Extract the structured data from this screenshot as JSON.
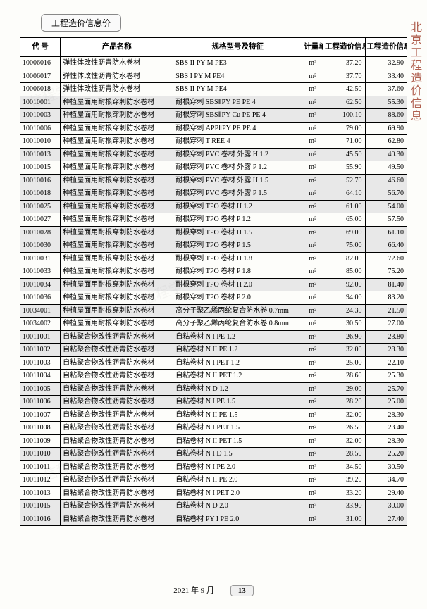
{
  "headerTab": "工程造价信息价",
  "sideText": "北京工程造价信息",
  "columns": [
    "代 号",
    "产品名称",
    "规格型号及特征",
    "计量单位",
    "工程造价信息价（含税）",
    "工程造价信息价（除税）"
  ],
  "unit": "m²",
  "rows": [
    {
      "shade": false,
      "code": "10006016",
      "name": "弹性体改性沥青防水卷材",
      "spec": "SBS II PY M PE3",
      "p1": "37.20",
      "p2": "32.90"
    },
    {
      "shade": false,
      "code": "10006017",
      "name": "弹性体改性沥青防水卷材",
      "spec": "SBS I PY M PE4",
      "p1": "37.70",
      "p2": "33.40"
    },
    {
      "shade": false,
      "code": "10006018",
      "name": "弹性体改性沥青防水卷材",
      "spec": "SBS II PY M PE4",
      "p1": "42.50",
      "p2": "37.60"
    },
    {
      "shade": true,
      "code": "10010001",
      "name": "种植屋面用耐根穿刺防水卷材",
      "spec": "耐根穿刺 SBSⅡPY PE PE 4",
      "p1": "62.50",
      "p2": "55.30"
    },
    {
      "shade": true,
      "code": "10010003",
      "name": "种植屋面用耐根穿刺防水卷材",
      "spec": "耐根穿刺 SBSⅡPY-Cu PE PE 4",
      "p1": "100.10",
      "p2": "88.60"
    },
    {
      "shade": false,
      "code": "10010006",
      "name": "种植屋面用耐根穿刺防水卷材",
      "spec": "耐根穿刺 APPⅡPY PE PE 4",
      "p1": "79.00",
      "p2": "69.90"
    },
    {
      "shade": false,
      "code": "10010010",
      "name": "种植屋面用耐根穿刺防水卷材",
      "spec": "耐根穿刺 T REE 4",
      "p1": "71.00",
      "p2": "62.80"
    },
    {
      "shade": true,
      "code": "10010013",
      "name": "种植屋面用耐根穿刺防水卷材",
      "spec": "耐根穿刺 PVC 卷材 外露 H 1.2",
      "p1": "45.50",
      "p2": "40.30"
    },
    {
      "shade": false,
      "code": "10010015",
      "name": "种植屋面用耐根穿刺防水卷材",
      "spec": "耐根穿刺 PVC 卷材 外露 P 1.2",
      "p1": "55.90",
      "p2": "49.50"
    },
    {
      "shade": true,
      "code": "10010016",
      "name": "种植屋面用耐根穿刺防水卷材",
      "spec": "耐根穿刺 PVC 卷材 外露 H 1.5",
      "p1": "52.70",
      "p2": "46.60"
    },
    {
      "shade": true,
      "code": "10010018",
      "name": "种植屋面用耐根穿刺防水卷材",
      "spec": "耐根穿刺 PVC 卷材 外露 P 1.5",
      "p1": "64.10",
      "p2": "56.70"
    },
    {
      "shade": true,
      "code": "10010025",
      "name": "种植屋面用耐根穿刺防水卷材",
      "spec": "耐根穿刺 TPO 卷材 H 1.2",
      "p1": "61.00",
      "p2": "54.00"
    },
    {
      "shade": false,
      "code": "10010027",
      "name": "种植屋面用耐根穿刺防水卷材",
      "spec": "耐根穿刺 TPO 卷材 P 1.2",
      "p1": "65.00",
      "p2": "57.50"
    },
    {
      "shade": true,
      "code": "10010028",
      "name": "种植屋面用耐根穿刺防水卷材",
      "spec": "耐根穿刺 TPO 卷材 H 1.5",
      "p1": "69.00",
      "p2": "61.10"
    },
    {
      "shade": true,
      "code": "10010030",
      "name": "种植屋面用耐根穿刺防水卷材",
      "spec": "耐根穿刺 TPO 卷材 P 1.5",
      "p1": "75.00",
      "p2": "66.40"
    },
    {
      "shade": false,
      "code": "10010031",
      "name": "种植屋面用耐根穿刺防水卷材",
      "spec": "耐根穿刺 TPO 卷材 H 1.8",
      "p1": "82.00",
      "p2": "72.60"
    },
    {
      "shade": false,
      "code": "10010033",
      "name": "种植屋面用耐根穿刺防水卷材",
      "spec": "耐根穿刺 TPO 卷材 P 1.8",
      "p1": "85.00",
      "p2": "75.20"
    },
    {
      "shade": true,
      "code": "10010034",
      "name": "种植屋面用耐根穿刺防水卷材",
      "spec": "耐根穿刺 TPO 卷材 H 2.0",
      "p1": "92.00",
      "p2": "81.40"
    },
    {
      "shade": false,
      "code": "10010036",
      "name": "种植屋面用耐根穿刺防水卷材",
      "spec": "耐根穿刺 TPO 卷材 P 2.0",
      "p1": "94.00",
      "p2": "83.20"
    },
    {
      "shade": true,
      "code": "10034001",
      "name": "种植屋面用耐根穿刺防水卷材",
      "spec": "高分子聚乙烯丙纶复合防水卷 0.7mm",
      "p1": "24.30",
      "p2": "21.50"
    },
    {
      "shade": false,
      "code": "10034002",
      "name": "种植屋面用耐根穿刺防水卷材",
      "spec": "高分子聚乙烯丙纶复合防水卷 0.8mm",
      "p1": "30.50",
      "p2": "27.00"
    },
    {
      "shade": true,
      "code": "10011001",
      "name": "自粘聚合物改性沥青防水卷材",
      "spec": "自粘卷材 N I PE  1.2",
      "p1": "26.90",
      "p2": "23.80"
    },
    {
      "shade": true,
      "code": "10011002",
      "name": "自粘聚合物改性沥青防水卷材",
      "spec": "自粘卷材 N II PE  1.2",
      "p1": "32.00",
      "p2": "28.30"
    },
    {
      "shade": false,
      "code": "10011003",
      "name": "自粘聚合物改性沥青防水卷材",
      "spec": "自粘卷材 N I PET  1.2",
      "p1": "25.00",
      "p2": "22.10"
    },
    {
      "shade": false,
      "code": "10011004",
      "name": "自粘聚合物改性沥青防水卷材",
      "spec": "自粘卷材 N II PET  1.2",
      "p1": "28.60",
      "p2": "25.30"
    },
    {
      "shade": true,
      "code": "10011005",
      "name": "自粘聚合物改性沥青防水卷材",
      "spec": "自粘卷材 N  D  1.2",
      "p1": "29.00",
      "p2": "25.70"
    },
    {
      "shade": true,
      "code": "10011006",
      "name": "自粘聚合物改性沥青防水卷材",
      "spec": "自粘卷材 N I PE  1.5",
      "p1": "28.20",
      "p2": "25.00"
    },
    {
      "shade": false,
      "code": "10011007",
      "name": "自粘聚合物改性沥青防水卷材",
      "spec": "自粘卷材 N II PE  1.5",
      "p1": "32.00",
      "p2": "28.30"
    },
    {
      "shade": false,
      "code": "10011008",
      "name": "自粘聚合物改性沥青防水卷材",
      "spec": "自粘卷材 N I PET  1.5",
      "p1": "26.50",
      "p2": "23.40"
    },
    {
      "shade": false,
      "code": "10011009",
      "name": "自粘聚合物改性沥青防水卷材",
      "spec": "自粘卷材 N II PET  1.5",
      "p1": "32.00",
      "p2": "28.30"
    },
    {
      "shade": true,
      "code": "10011010",
      "name": "自粘聚合物改性沥青防水卷材",
      "spec": "自粘卷材 N I D  1.5",
      "p1": "28.50",
      "p2": "25.20"
    },
    {
      "shade": false,
      "code": "10011011",
      "name": "自粘聚合物改性沥青防水卷材",
      "spec": "自粘卷材 N I PE 2.0",
      "p1": "34.50",
      "p2": "30.50"
    },
    {
      "shade": false,
      "code": "10011012",
      "name": "自粘聚合物改性沥青防水卷材",
      "spec": "自粘卷材 N II PE 2.0",
      "p1": "39.20",
      "p2": "34.70"
    },
    {
      "shade": false,
      "code": "10011013",
      "name": "自粘聚合物改性沥青防水卷材",
      "spec": "自粘卷材 N I PET 2.0",
      "p1": "33.20",
      "p2": "29.40"
    },
    {
      "shade": true,
      "code": "10011015",
      "name": "自粘聚合物改性沥青防水卷材",
      "spec": "自粘卷材 N  D 2.0",
      "p1": "33.90",
      "p2": "30.00"
    },
    {
      "shade": true,
      "code": "10011016",
      "name": "自粘聚合物改性沥青防水卷材",
      "spec": "自粘卷材 PY I PE 2.0",
      "p1": "31.00",
      "p2": "27.40"
    }
  ],
  "footerDate": "2021 年 9 月",
  "pageNumber": "13"
}
